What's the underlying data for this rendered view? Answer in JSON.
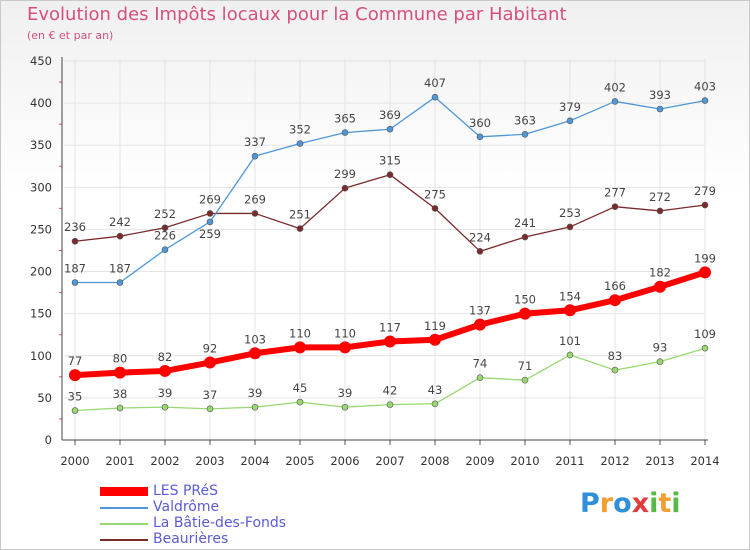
{
  "title": "Evolution des Impôts locaux pour la Commune par Habitant",
  "subtitle": "(en € et par an)",
  "logo": {
    "text": "Proxiti",
    "letters": [
      {
        "ch": "P",
        "color": "#2f8fd8"
      },
      {
        "ch": "r",
        "color": "#f0a030"
      },
      {
        "ch": "o",
        "color": "#2f8fd8"
      },
      {
        "ch": "x",
        "color": "#e03e3e"
      },
      {
        "ch": "i",
        "color": "#58b848"
      },
      {
        "ch": "t",
        "color": "#f0a030"
      },
      {
        "ch": "i",
        "color": "#58b848"
      }
    ]
  },
  "chart_data": {
    "type": "line",
    "title": "Evolution des Impôts locaux pour la Commune par Habitant",
    "subtitle": "(en € et par an)",
    "x": [
      "2000",
      "2001",
      "2002",
      "2003",
      "2004",
      "2005",
      "2006",
      "2007",
      "2008",
      "2009",
      "2010",
      "2011",
      "2012",
      "2013",
      "2014"
    ],
    "ylim": [
      0,
      450
    ],
    "yticks": [
      0,
      50,
      100,
      150,
      200,
      250,
      300,
      350,
      400,
      450
    ],
    "grid": true,
    "legend_position": "bottom-left",
    "series": [
      {
        "name": "LES PRéS",
        "color": "#ff0000",
        "values": [
          77,
          80,
          82,
          92,
          103,
          110,
          110,
          117,
          119,
          137,
          150,
          154,
          166,
          182,
          199
        ]
      },
      {
        "name": "Valdrôme",
        "color": "#4f97d6",
        "values": [
          187,
          187,
          226,
          259,
          337,
          352,
          365,
          369,
          407,
          360,
          363,
          379,
          402,
          393,
          403
        ]
      },
      {
        "name": "La Bâtie-des-Fonds",
        "color": "#98d870",
        "values": [
          35,
          38,
          39,
          37,
          39,
          45,
          39,
          42,
          43,
          74,
          71,
          101,
          83,
          93,
          109
        ]
      },
      {
        "name": "Beaurières",
        "color": "#7a2a2a",
        "values": [
          236,
          242,
          252,
          269,
          269,
          251,
          299,
          315,
          275,
          224,
          241,
          253,
          277,
          272,
          279
        ]
      }
    ]
  }
}
